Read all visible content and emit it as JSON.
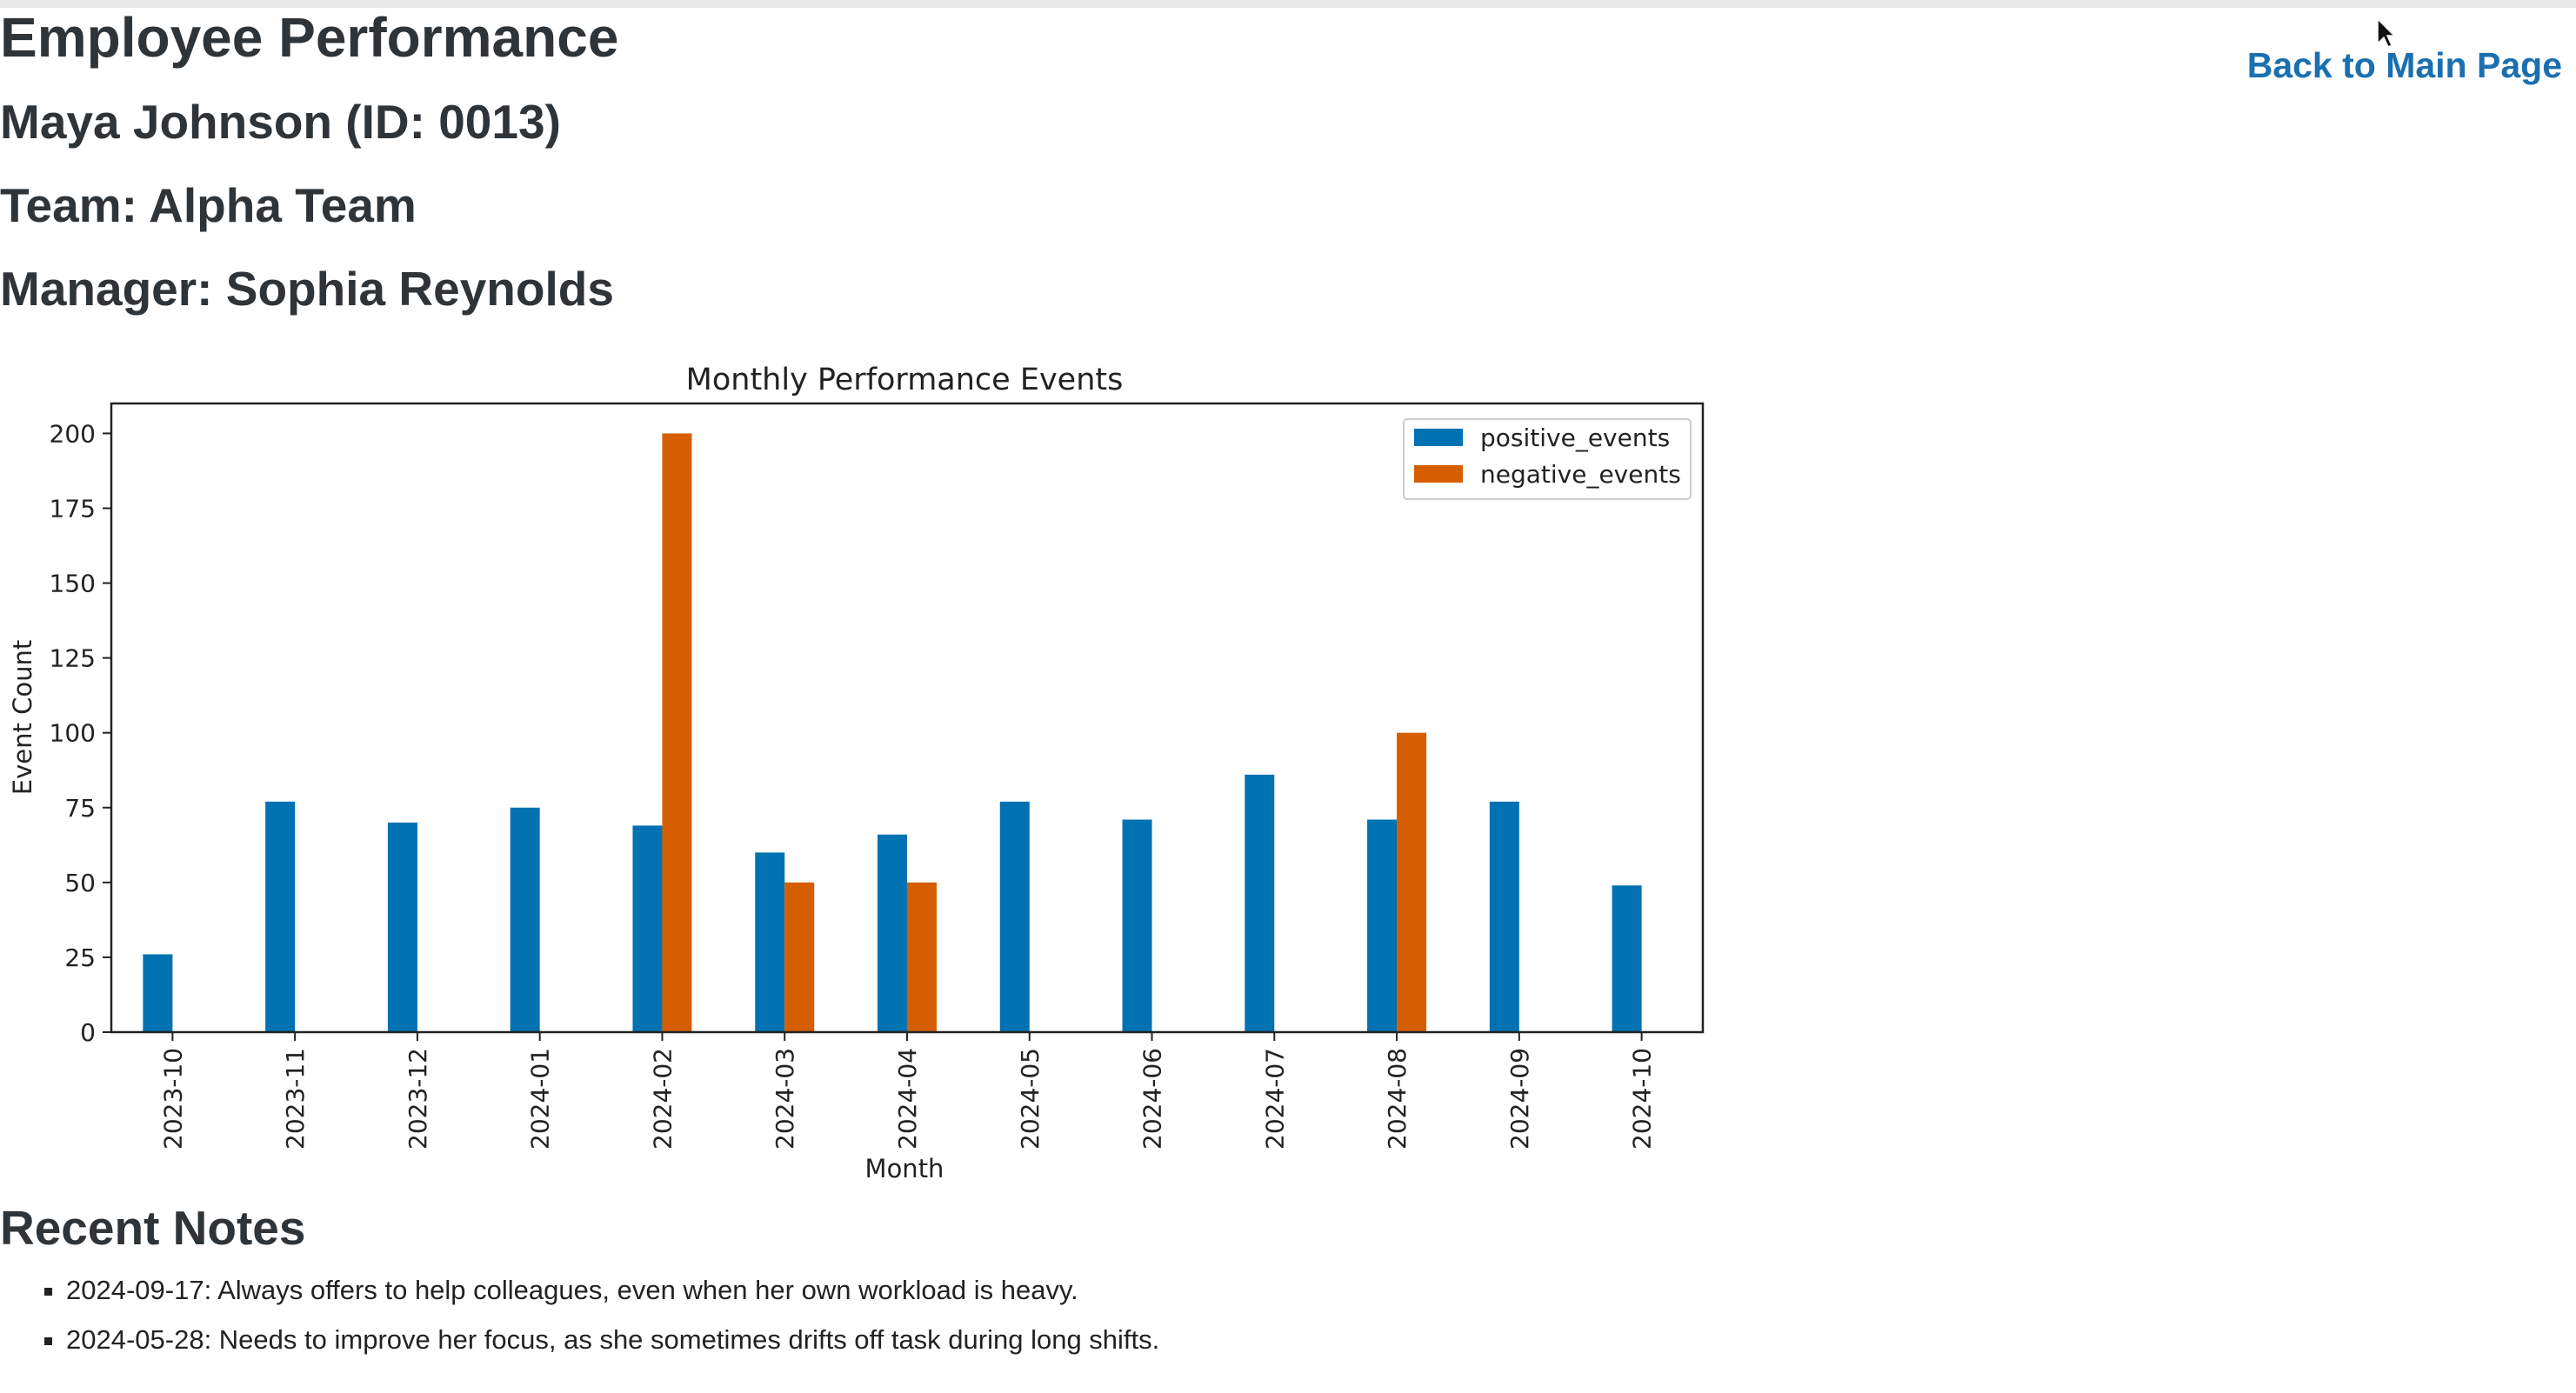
{
  "page": {
    "title": "Employee Performance",
    "back_link": "Back to Main Page",
    "employee_name": "Maya Johnson (ID: 0013)",
    "team": "Team: Alpha Team",
    "manager": "Manager: Sophia Reynolds"
  },
  "chart_data": {
    "type": "bar",
    "title": "Monthly Performance Events",
    "xlabel": "Month",
    "ylabel": "Event Count",
    "ylim": [
      0,
      210
    ],
    "yticks": [
      0,
      25,
      50,
      75,
      100,
      125,
      150,
      175,
      200
    ],
    "legend_position": "top-right",
    "grid": false,
    "categories": [
      "2023-10",
      "2023-11",
      "2023-12",
      "2024-01",
      "2024-02",
      "2024-03",
      "2024-04",
      "2024-05",
      "2024-06",
      "2024-07",
      "2024-08",
      "2024-09",
      "2024-10"
    ],
    "series": [
      {
        "name": "positive_events",
        "color": "#0072b2",
        "values": [
          26,
          77,
          70,
          75,
          69,
          60,
          66,
          77,
          71,
          86,
          71,
          77,
          49
        ]
      },
      {
        "name": "negative_events",
        "color": "#d55e00",
        "values": [
          0,
          0,
          0,
          0,
          200,
          50,
          50,
          0,
          0,
          0,
          100,
          0,
          0
        ]
      }
    ]
  },
  "notes": {
    "title": "Recent Notes",
    "items": [
      "2024-09-17: Always offers to help colleagues, even when her own workload is heavy.",
      "2024-05-28: Needs to improve her focus, as she sometimes drifts off task during long shifts."
    ]
  },
  "colors": {
    "link": "#1a6fb0",
    "heading": "#2f3438"
  }
}
